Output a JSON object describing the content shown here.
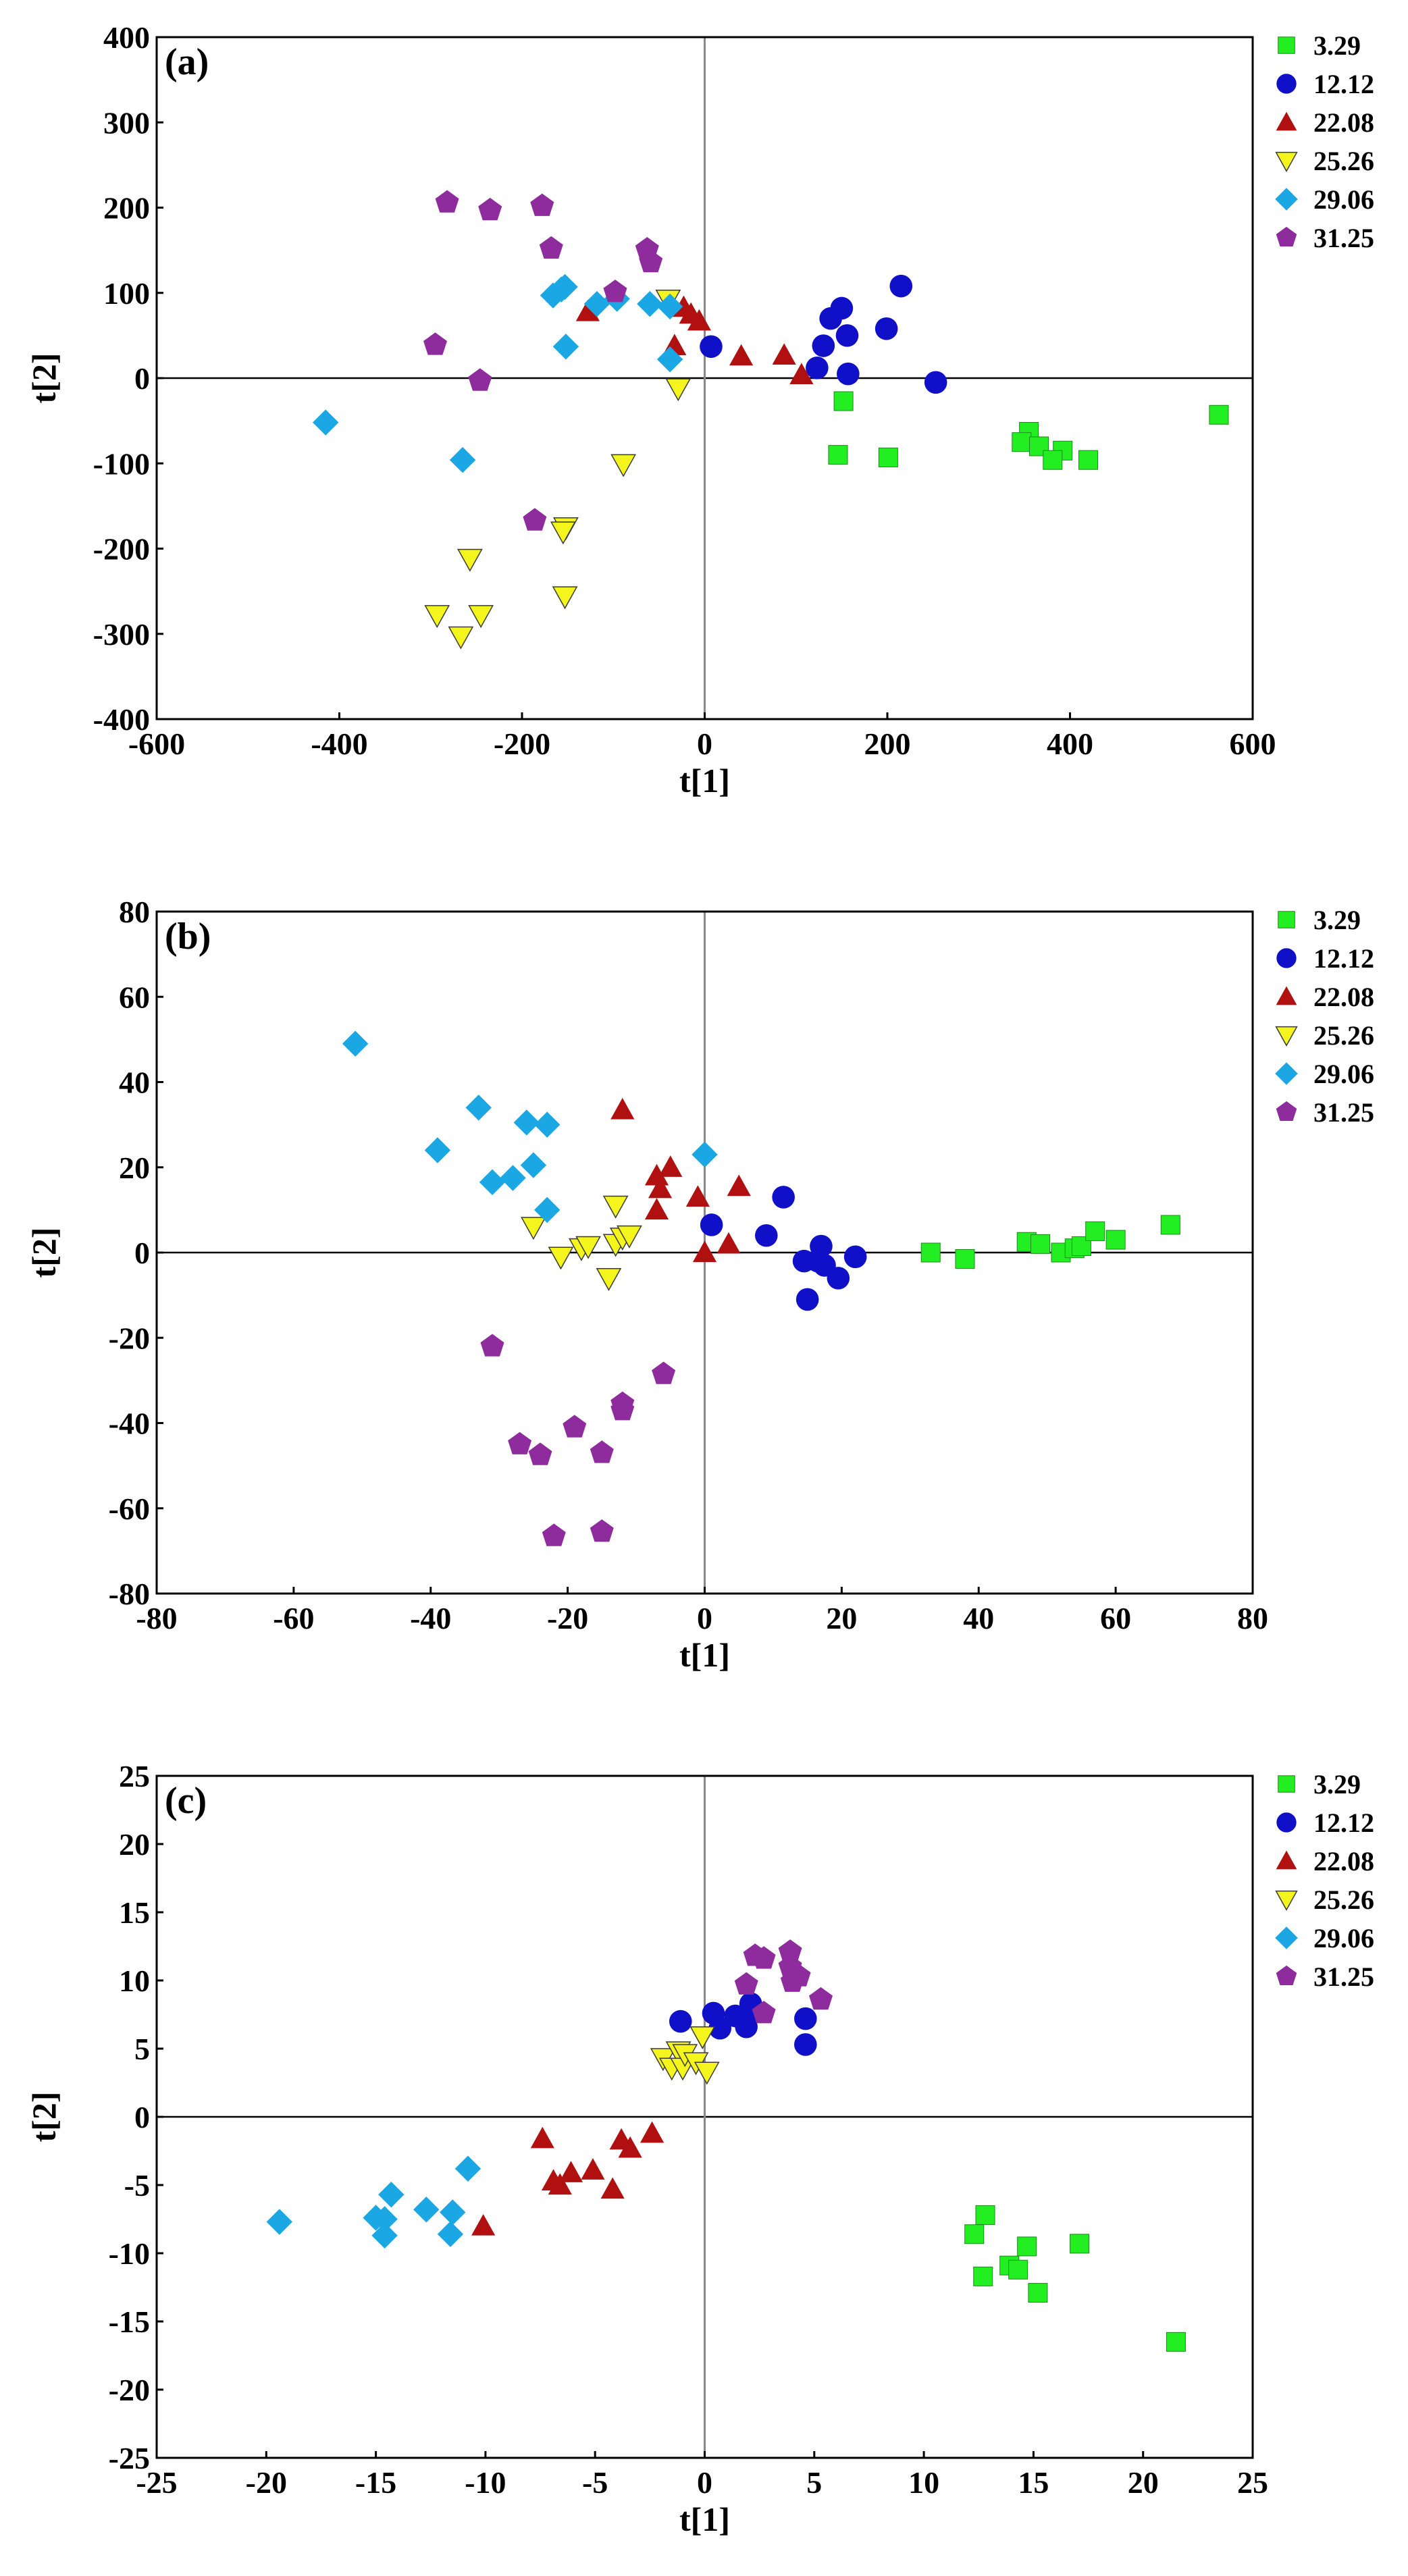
{
  "chart_data": [
    {
      "type": "scatter",
      "panel_label": "(a)",
      "xlabel": "t[1]",
      "ylabel": "t[2]",
      "xlim": [
        -600,
        600
      ],
      "ylim": [
        -400,
        400
      ],
      "xticks": [
        -600,
        -400,
        -200,
        0,
        200,
        400,
        600
      ],
      "yticks": [
        -400,
        -300,
        -200,
        -100,
        0,
        100,
        200,
        300,
        400
      ],
      "legend_position": "right",
      "series": [
        {
          "name": "3.29",
          "marker": "square",
          "color": "#22ee22",
          "points": [
            [
              152,
              -27
            ],
            [
              146,
              -90
            ],
            [
              201,
              -93
            ],
            [
              355,
              -63
            ],
            [
              347,
              -75
            ],
            [
              366,
              -80
            ],
            [
              392,
              -85
            ],
            [
              381,
              -96
            ],
            [
              420,
              -96
            ],
            [
              563,
              -43
            ]
          ]
        },
        {
          "name": "12.12",
          "marker": "circle",
          "color": "#1010c8",
          "points": [
            [
              7,
              37
            ],
            [
              123,
              12
            ],
            [
              130,
              38
            ],
            [
              138,
              70
            ],
            [
              150,
              82
            ],
            [
              156,
              50
            ],
            [
              157,
              5
            ],
            [
              199,
              58
            ],
            [
              215,
              108
            ],
            [
              253,
              -5
            ]
          ]
        },
        {
          "name": "22.08",
          "marker": "triangle-up",
          "color": "#b01010",
          "points": [
            [
              -128,
              78
            ],
            [
              -33,
              38
            ],
            [
              -23,
              83
            ],
            [
              -15,
              75
            ],
            [
              -6,
              67
            ],
            [
              40,
              26
            ],
            [
              87,
              27
            ],
            [
              106,
              4
            ]
          ]
        },
        {
          "name": "25.26",
          "marker": "triangle-down",
          "color": "#f5f51e",
          "points": [
            [
              -40,
              92
            ],
            [
              -29,
              -12
            ],
            [
              -89,
              -101
            ],
            [
              -152,
              -175
            ],
            [
              -155,
              -180
            ],
            [
              -153,
              -256
            ],
            [
              -257,
              -212
            ],
            [
              -293,
              -278
            ],
            [
              -245,
              -278
            ],
            [
              -267,
              -303
            ]
          ]
        },
        {
          "name": "29.06",
          "marker": "diamond",
          "color": "#1aa7e3",
          "points": [
            [
              -415,
              -52
            ],
            [
              -265,
              -96
            ],
            [
              -166,
              97
            ],
            [
              -157,
              104
            ],
            [
              -153,
              107
            ],
            [
              -152,
              37
            ],
            [
              -118,
              87
            ],
            [
              -96,
              93
            ],
            [
              -60,
              87
            ],
            [
              -38,
              84
            ],
            [
              -38,
              22
            ]
          ]
        },
        {
          "name": "31.25",
          "marker": "pentagon",
          "color": "#8e2c9e",
          "points": [
            [
              -282,
              206
            ],
            [
              -235,
              197
            ],
            [
              -178,
              202
            ],
            [
              -168,
              152
            ],
            [
              -295,
              39
            ],
            [
              -246,
              -3
            ],
            [
              -63,
              151
            ],
            [
              -59,
              136
            ],
            [
              -98,
              101
            ],
            [
              -186,
              -167
            ]
          ]
        }
      ]
    },
    {
      "type": "scatter",
      "panel_label": "(b)",
      "xlabel": "t[1]",
      "ylabel": "t[2]",
      "xlim": [
        -80,
        80
      ],
      "ylim": [
        -80,
        80
      ],
      "xticks": [
        -80,
        -60,
        -40,
        -20,
        0,
        20,
        40,
        60,
        80
      ],
      "yticks": [
        -80,
        -60,
        -40,
        -20,
        0,
        20,
        40,
        60,
        80
      ],
      "legend_position": "right",
      "series": [
        {
          "name": "3.29",
          "marker": "square",
          "color": "#22ee22",
          "points": [
            [
              33,
              0
            ],
            [
              38,
              -1.5
            ],
            [
              47,
              2.5
            ],
            [
              49,
              2
            ],
            [
              52,
              0
            ],
            [
              54,
              1
            ],
            [
              55,
              1.5
            ],
            [
              57,
              5
            ],
            [
              60,
              3
            ],
            [
              68,
              6.5
            ]
          ]
        },
        {
          "name": "12.12",
          "marker": "circle",
          "color": "#1010c8",
          "points": [
            [
              1,
              6.5
            ],
            [
              9,
              4
            ],
            [
              11.5,
              13
            ],
            [
              14.5,
              -2
            ],
            [
              15,
              -11
            ],
            [
              16.5,
              -2
            ],
            [
              17,
              1.5
            ],
            [
              17.5,
              -3
            ],
            [
              19.5,
              -6
            ],
            [
              22,
              -1
            ]
          ]
        },
        {
          "name": "22.08",
          "marker": "triangle-up",
          "color": "#b01010",
          "points": [
            [
              -12,
              33.5
            ],
            [
              -7,
              10
            ],
            [
              -7,
              18
            ],
            [
              -6.5,
              15
            ],
            [
              -5,
              20
            ],
            [
              -1,
              13
            ],
            [
              0,
              0
            ],
            [
              3.5,
              2
            ],
            [
              5,
              15.5
            ]
          ]
        },
        {
          "name": "25.26",
          "marker": "triangle-down",
          "color": "#f5f51e",
          "points": [
            [
              -25,
              6
            ],
            [
              -21,
              -1
            ],
            [
              -18,
              1
            ],
            [
              -17,
              1.5
            ],
            [
              -14,
              -6
            ],
            [
              -13,
              2
            ],
            [
              -13,
              11
            ],
            [
              -12,
              3.5
            ],
            [
              -11,
              4
            ]
          ]
        },
        {
          "name": "29.06",
          "marker": "diamond",
          "color": "#1aa7e3",
          "points": [
            [
              -51,
              49
            ],
            [
              -39,
              24
            ],
            [
              -33,
              34
            ],
            [
              -31,
              16.5
            ],
            [
              -28,
              17.5
            ],
            [
              -26,
              30.5
            ],
            [
              -25,
              20.5
            ],
            [
              -23,
              30
            ],
            [
              -23,
              10
            ],
            [
              0,
              23
            ]
          ]
        },
        {
          "name": "31.25",
          "marker": "pentagon",
          "color": "#8e2c9e",
          "points": [
            [
              -31,
              -22
            ],
            [
              -27,
              -45
            ],
            [
              -24,
              -47.5
            ],
            [
              -22,
              -66.5
            ],
            [
              -19,
              -41
            ],
            [
              -15,
              -47
            ],
            [
              -15,
              -65.5
            ],
            [
              -12,
              -35.5
            ],
            [
              -12,
              -37
            ],
            [
              -6,
              -28.5
            ]
          ]
        }
      ]
    },
    {
      "type": "scatter",
      "panel_label": "(c)",
      "xlabel": "t[1]",
      "ylabel": "t[2]",
      "xlim": [
        -25,
        25
      ],
      "ylim": [
        -25,
        25
      ],
      "xticks": [
        -25,
        -20,
        -15,
        -10,
        -5,
        0,
        5,
        10,
        15,
        20,
        25
      ],
      "yticks": [
        -25,
        -20,
        -15,
        -10,
        -5,
        0,
        5,
        10,
        15,
        20,
        25
      ],
      "legend_position": "right",
      "series": [
        {
          "name": "3.29",
          "marker": "square",
          "color": "#22ee22",
          "points": [
            [
              12.3,
              -8.6
            ],
            [
              12.8,
              -7.2
            ],
            [
              12.7,
              -11.7
            ],
            [
              13.9,
              -10.9
            ],
            [
              14.3,
              -11.2
            ],
            [
              14.7,
              -9.5
            ],
            [
              15.2,
              -12.9
            ],
            [
              17.1,
              -9.3
            ],
            [
              21.5,
              -16.5
            ]
          ]
        },
        {
          "name": "12.12",
          "marker": "circle",
          "color": "#1010c8",
          "points": [
            [
              -1.1,
              7
            ],
            [
              0.4,
              7.6
            ],
            [
              0.7,
              6.5
            ],
            [
              1.4,
              7.4
            ],
            [
              1.9,
              6.6
            ],
            [
              2.1,
              8.3
            ],
            [
              2.1,
              7.6
            ],
            [
              4.6,
              7.2
            ],
            [
              4.6,
              5.3
            ]
          ]
        },
        {
          "name": "22.08",
          "marker": "triangle-up",
          "color": "#b01010",
          "points": [
            [
              -10.1,
              -8
            ],
            [
              -7.4,
              -1.6
            ],
            [
              -6.9,
              -4.7
            ],
            [
              -6.6,
              -5
            ],
            [
              -6.1,
              -4.1
            ],
            [
              -5.1,
              -3.9
            ],
            [
              -4.2,
              -5.3
            ],
            [
              -3.8,
              -1.7
            ],
            [
              -3.4,
              -2.3
            ],
            [
              -2.4,
              -1.2
            ]
          ]
        },
        {
          "name": "25.26",
          "marker": "triangle-down",
          "color": "#f5f51e",
          "points": [
            [
              -1.9,
              4.3
            ],
            [
              -1.5,
              3.6
            ],
            [
              -1.2,
              4.8
            ],
            [
              -1,
              3.6
            ],
            [
              -0.9,
              4.6
            ],
            [
              -0.4,
              4
            ],
            [
              -0.1,
              5.9
            ],
            [
              0.1,
              3.3
            ]
          ]
        },
        {
          "name": "29.06",
          "marker": "diamond",
          "color": "#1aa7e3",
          "points": [
            [
              -19.4,
              -7.7
            ],
            [
              -15,
              -7.4
            ],
            [
              -14.6,
              -8.7
            ],
            [
              -14.6,
              -7.5
            ],
            [
              -14.3,
              -5.7
            ],
            [
              -12.7,
              -6.8
            ],
            [
              -11.6,
              -8.6
            ],
            [
              -11.5,
              -7
            ],
            [
              -10.8,
              -3.8
            ]
          ]
        },
        {
          "name": "31.25",
          "marker": "pentagon",
          "color": "#8e2c9e",
          "points": [
            [
              1.9,
              9.7
            ],
            [
              2.3,
              11.8
            ],
            [
              2.7,
              11.6
            ],
            [
              2.7,
              7.6
            ],
            [
              3.9,
              11
            ],
            [
              3.9,
              12.1
            ],
            [
              4,
              9.9
            ],
            [
              4.3,
              10.3
            ],
            [
              5.3,
              8.6
            ]
          ]
        }
      ]
    }
  ]
}
